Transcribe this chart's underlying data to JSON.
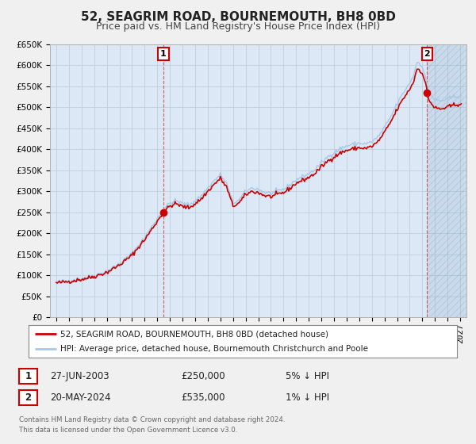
{
  "title": "52, SEAGRIM ROAD, BOURNEMOUTH, BH8 0BD",
  "subtitle": "Price paid vs. HM Land Registry's House Price Index (HPI)",
  "legend_line1": "52, SEAGRIM ROAD, BOURNEMOUTH, BH8 0BD (detached house)",
  "legend_line2": "HPI: Average price, detached house, Bournemouth Christchurch and Poole",
  "annotation1_date": "27-JUN-2003",
  "annotation1_price": "£250,000",
  "annotation1_hpi": "5% ↓ HPI",
  "annotation2_date": "20-MAY-2024",
  "annotation2_price": "£535,000",
  "annotation2_hpi": "1% ↓ HPI",
  "footer1": "Contains HM Land Registry data © Crown copyright and database right 2024.",
  "footer2": "This data is licensed under the Open Government Licence v3.0.",
  "sale1_date_num": 2003.49,
  "sale1_price": 250000,
  "sale2_date_num": 2024.38,
  "sale2_price": 535000,
  "hpi_color": "#a8c8e8",
  "price_color": "#cc0000",
  "background_color": "#f0f0f0",
  "plot_bg_color": "#dce8f5",
  "grid_color": "#b8ccd8",
  "ylim_min": 0,
  "ylim_max": 650000,
  "xlim_min": 1994.5,
  "xlim_max": 2027.5,
  "title_fontsize": 11,
  "subtitle_fontsize": 9,
  "tick_fontsize": 7.5
}
